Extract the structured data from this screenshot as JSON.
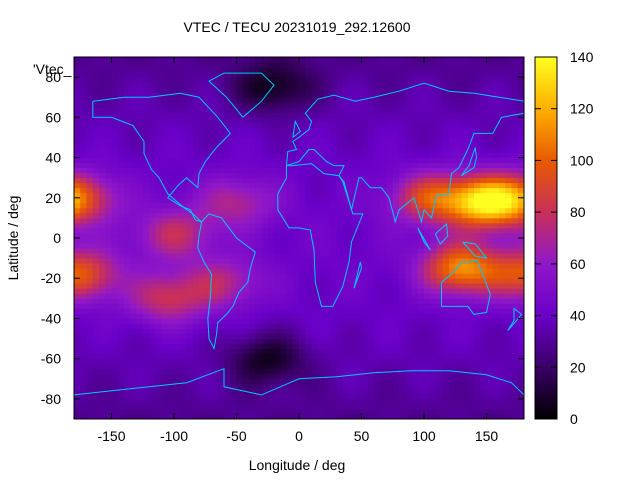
{
  "chart_data": {
    "type": "heatmap",
    "title": "VTEC / TECU 20231019_292.12600",
    "xlabel": "Longitude / deg",
    "ylabel": "Latitude / deg",
    "legend_key": "'Vtec_",
    "xlim": [
      -180,
      180
    ],
    "ylim": [
      -90,
      90
    ],
    "x_ticks": [
      -150,
      -100,
      -50,
      0,
      50,
      100,
      150
    ],
    "y_ticks": [
      -80,
      -60,
      -40,
      -20,
      0,
      20,
      40,
      60,
      80
    ],
    "colorbar": {
      "range": [
        0,
        140
      ],
      "ticks": [
        0,
        20,
        40,
        60,
        80,
        100,
        120,
        140
      ],
      "palette": [
        "#000000",
        "#3a0066",
        "#6a00c8",
        "#9018c8",
        "#c8305a",
        "#e85a00",
        "#ffb000",
        "#ffff20"
      ]
    },
    "grid": false,
    "coastline_color": "#00c8ff",
    "features": [
      {
        "lon": 150,
        "lat": 18,
        "tec": 130
      },
      {
        "lon": 105,
        "lat": 20,
        "tec": 90
      },
      {
        "lon": 130,
        "lat": -15,
        "tec": 110
      },
      {
        "lon": -175,
        "lat": 20,
        "tec": 85
      },
      {
        "lon": -175,
        "lat": -18,
        "tec": 95
      },
      {
        "lon": -105,
        "lat": -30,
        "tec": 80
      },
      {
        "lon": -100,
        "lat": 2,
        "tec": 75
      },
      {
        "lon": -60,
        "lat": -22,
        "tec": 70
      },
      {
        "lon": -50,
        "lat": 18,
        "tec": 70
      },
      {
        "lon": -25,
        "lat": -60,
        "tec": 10
      },
      {
        "lon": -20,
        "lat": 75,
        "tec": 12
      }
    ]
  }
}
